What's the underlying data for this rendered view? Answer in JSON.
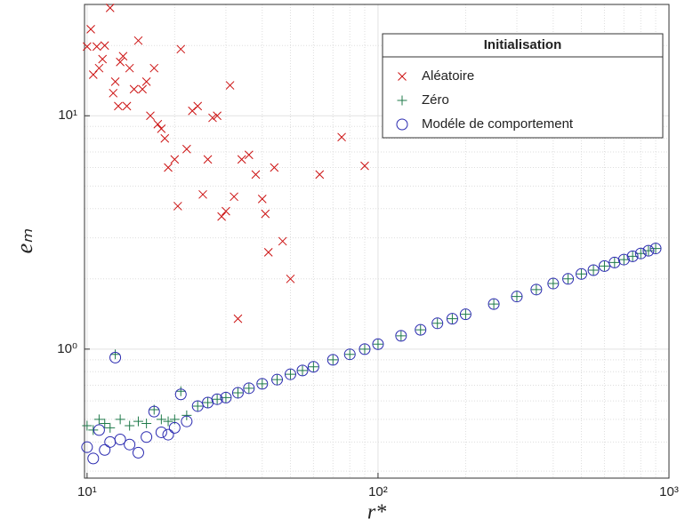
{
  "chart_data": {
    "type": "scatter",
    "xlabel": "r*",
    "ylabel": "eₘ",
    "xscale": "log",
    "yscale": "log",
    "xlim": [
      9.8,
      1000
    ],
    "ylim": [
      0.28,
      30
    ],
    "xticks": [
      {
        "value": 10,
        "label": "10¹"
      },
      {
        "value": 100,
        "label": "10²"
      },
      {
        "value": 1000,
        "label": "10³"
      }
    ],
    "yticks": [
      {
        "value": 1,
        "label": "10⁰"
      },
      {
        "value": 10,
        "label": "10¹"
      }
    ],
    "grid": true,
    "minor_grid": true,
    "legend": {
      "title": "Initialisation",
      "position": "northeast"
    },
    "series": [
      {
        "name": "Aléatoire",
        "color": "#cc1111",
        "marker": "x",
        "x": [
          10,
          10.3,
          10.5,
          10.8,
          11,
          11.3,
          11.5,
          12,
          12.3,
          12.5,
          12.8,
          13,
          13.3,
          13.7,
          14,
          14.5,
          15,
          15.5,
          16,
          16.5,
          17,
          17.5,
          18,
          18.5,
          19,
          20,
          20.5,
          21,
          22,
          23,
          24,
          25,
          26,
          27,
          28,
          29,
          30,
          31,
          32,
          33,
          34,
          36,
          38,
          40,
          41,
          42,
          44,
          47,
          50,
          63,
          75,
          90
        ],
        "values": [
          19.8,
          23.5,
          15,
          19.8,
          16,
          17.5,
          20,
          29,
          12.5,
          14,
          11,
          17,
          18,
          11,
          16,
          13,
          21,
          13,
          14,
          10,
          16,
          9.2,
          8.8,
          8,
          6,
          6.5,
          4.1,
          19.3,
          7.2,
          10.5,
          11,
          4.6,
          6.5,
          9.8,
          10,
          3.7,
          3.9,
          13.5,
          4.5,
          1.35,
          6.5,
          6.8,
          5.6,
          4.4,
          3.8,
          2.6,
          6,
          2.9,
          2,
          5.6,
          8.1,
          6.1
        ]
      },
      {
        "name": "Zéro",
        "color": "#1f7a4a",
        "marker": "+",
        "x": [
          10,
          10.5,
          11,
          11.5,
          12,
          12.5,
          13,
          14,
          15,
          16,
          17,
          18,
          19,
          20,
          21,
          22,
          24,
          26,
          28,
          30,
          33,
          36,
          40,
          45,
          50,
          55,
          60,
          70,
          80,
          90,
          100,
          120,
          140,
          160,
          180,
          200,
          250,
          300,
          350,
          400,
          450,
          500,
          550,
          600,
          650,
          700,
          750,
          800,
          850,
          900
        ],
        "values": [
          0.47,
          0.45,
          0.5,
          0.48,
          0.46,
          0.95,
          0.5,
          0.47,
          0.49,
          0.48,
          0.55,
          0.5,
          0.49,
          0.5,
          0.66,
          0.52,
          0.57,
          0.59,
          0.61,
          0.62,
          0.65,
          0.68,
          0.71,
          0.74,
          0.78,
          0.81,
          0.84,
          0.9,
          0.95,
          1,
          1.05,
          1.14,
          1.21,
          1.29,
          1.35,
          1.41,
          1.56,
          1.68,
          1.8,
          1.91,
          2,
          2.1,
          2.18,
          2.27,
          2.35,
          2.42,
          2.5,
          2.57,
          2.64,
          2.7
        ]
      },
      {
        "name": "Modéle de comportement",
        "color": "#2a2ab0",
        "marker": "o",
        "x": [
          10,
          10.5,
          11,
          11.5,
          12,
          12.5,
          13,
          14,
          15,
          16,
          17,
          18,
          19,
          20,
          21,
          22,
          24,
          26,
          28,
          30,
          33,
          36,
          40,
          45,
          50,
          55,
          60,
          70,
          80,
          90,
          100,
          120,
          140,
          160,
          180,
          200,
          250,
          300,
          350,
          400,
          450,
          500,
          550,
          600,
          650,
          700,
          750,
          800,
          850,
          900
        ],
        "values": [
          0.38,
          0.34,
          0.45,
          0.37,
          0.4,
          0.92,
          0.41,
          0.39,
          0.36,
          0.42,
          0.54,
          0.44,
          0.43,
          0.46,
          0.64,
          0.49,
          0.57,
          0.59,
          0.61,
          0.62,
          0.65,
          0.68,
          0.71,
          0.74,
          0.78,
          0.81,
          0.84,
          0.9,
          0.95,
          1,
          1.05,
          1.14,
          1.21,
          1.29,
          1.35,
          1.41,
          1.56,
          1.68,
          1.8,
          1.91,
          2,
          2.1,
          2.18,
          2.27,
          2.35,
          2.42,
          2.5,
          2.57,
          2.64,
          2.7
        ]
      }
    ]
  }
}
